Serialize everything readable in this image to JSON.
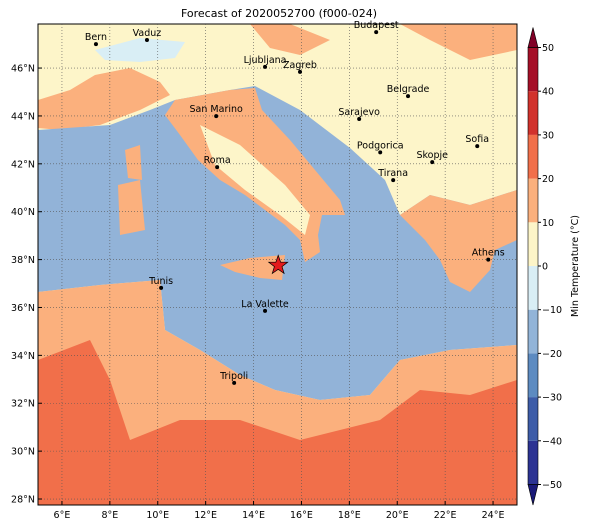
{
  "title": "Forecast of 2020052700 (f000-024)",
  "map": {
    "lonlim": [
      5,
      25
    ],
    "latlim": [
      27.75,
      47.84
    ],
    "xticks": [
      {
        "value": 6,
        "label": "6°E"
      },
      {
        "value": 8,
        "label": "8°E"
      },
      {
        "value": 10,
        "label": "10°E"
      },
      {
        "value": 12,
        "label": "12°E"
      },
      {
        "value": 14,
        "label": "14°E"
      },
      {
        "value": 16,
        "label": "16°E"
      },
      {
        "value": 18,
        "label": "18°E"
      },
      {
        "value": 20,
        "label": "20°E"
      },
      {
        "value": 22,
        "label": "22°E"
      },
      {
        "value": 24,
        "label": "24°E"
      }
    ],
    "yticks": [
      {
        "value": 28,
        "label": "28°N"
      },
      {
        "value": 30,
        "label": "30°N"
      },
      {
        "value": 32,
        "label": "32°N"
      },
      {
        "value": 34,
        "label": "34°N"
      },
      {
        "value": 36,
        "label": "36°N"
      },
      {
        "value": 38,
        "label": "38°N"
      },
      {
        "value": 40,
        "label": "40°N"
      },
      {
        "value": 42,
        "label": "42°N"
      },
      {
        "value": 44,
        "label": "44°N"
      },
      {
        "value": 46,
        "label": "46°N"
      }
    ],
    "cities": [
      {
        "name": "Bern",
        "lon": 7.42,
        "lat": 47.0
      },
      {
        "name": "Vaduz",
        "lon": 9.55,
        "lat": 47.17
      },
      {
        "name": "Budapest",
        "lon": 19.12,
        "lat": 47.5
      },
      {
        "name": "Ljubljana",
        "lon": 14.48,
        "lat": 46.05
      },
      {
        "name": "Zagreb",
        "lon": 15.94,
        "lat": 45.84
      },
      {
        "name": "Belgrade",
        "lon": 20.45,
        "lat": 44.83
      },
      {
        "name": "Sarajevo",
        "lon": 18.41,
        "lat": 43.87
      },
      {
        "name": "San Marino",
        "lon": 12.44,
        "lat": 43.99
      },
      {
        "name": "Sofia",
        "lon": 23.34,
        "lat": 42.74
      },
      {
        "name": "Podgorica",
        "lon": 19.29,
        "lat": 42.48
      },
      {
        "name": "Skopje",
        "lon": 21.46,
        "lat": 42.07
      },
      {
        "name": "Roma",
        "lon": 12.48,
        "lat": 41.86
      },
      {
        "name": "Tirana",
        "lon": 19.83,
        "lat": 41.32
      },
      {
        "name": "Athens",
        "lon": 23.8,
        "lat": 38.0
      },
      {
        "name": "Tunis",
        "lon": 10.14,
        "lat": 36.82
      },
      {
        "name": "La Valette",
        "lon": 14.48,
        "lat": 35.86
      },
      {
        "name": "Tripoli",
        "lon": 13.19,
        "lat": 32.85
      }
    ],
    "marker": {
      "lon": 15.03,
      "lat": 37.76,
      "color": "#e41a1c"
    }
  },
  "colorbar": {
    "label": "Min Temperature (°C)",
    "lim": [
      -50,
      50
    ],
    "ticks": [
      {
        "value": -50,
        "label": "−50"
      },
      {
        "value": -40,
        "label": "−40"
      },
      {
        "value": -30,
        "label": "−30"
      },
      {
        "value": -20,
        "label": "−20"
      },
      {
        "value": -10,
        "label": "−10"
      },
      0,
      10,
      20,
      30,
      40,
      50
    ],
    "colors": [
      "#2c3393",
      "#3d5ca8",
      "#5d8bc1",
      "#92b4d8",
      "#d9eef5",
      "#fdf5c8",
      "#fbb07d",
      "#f16f4a",
      "#d1322c",
      "#a50f27"
    ],
    "extend": [
      "#1a1a78",
      "#800026"
    ]
  }
}
